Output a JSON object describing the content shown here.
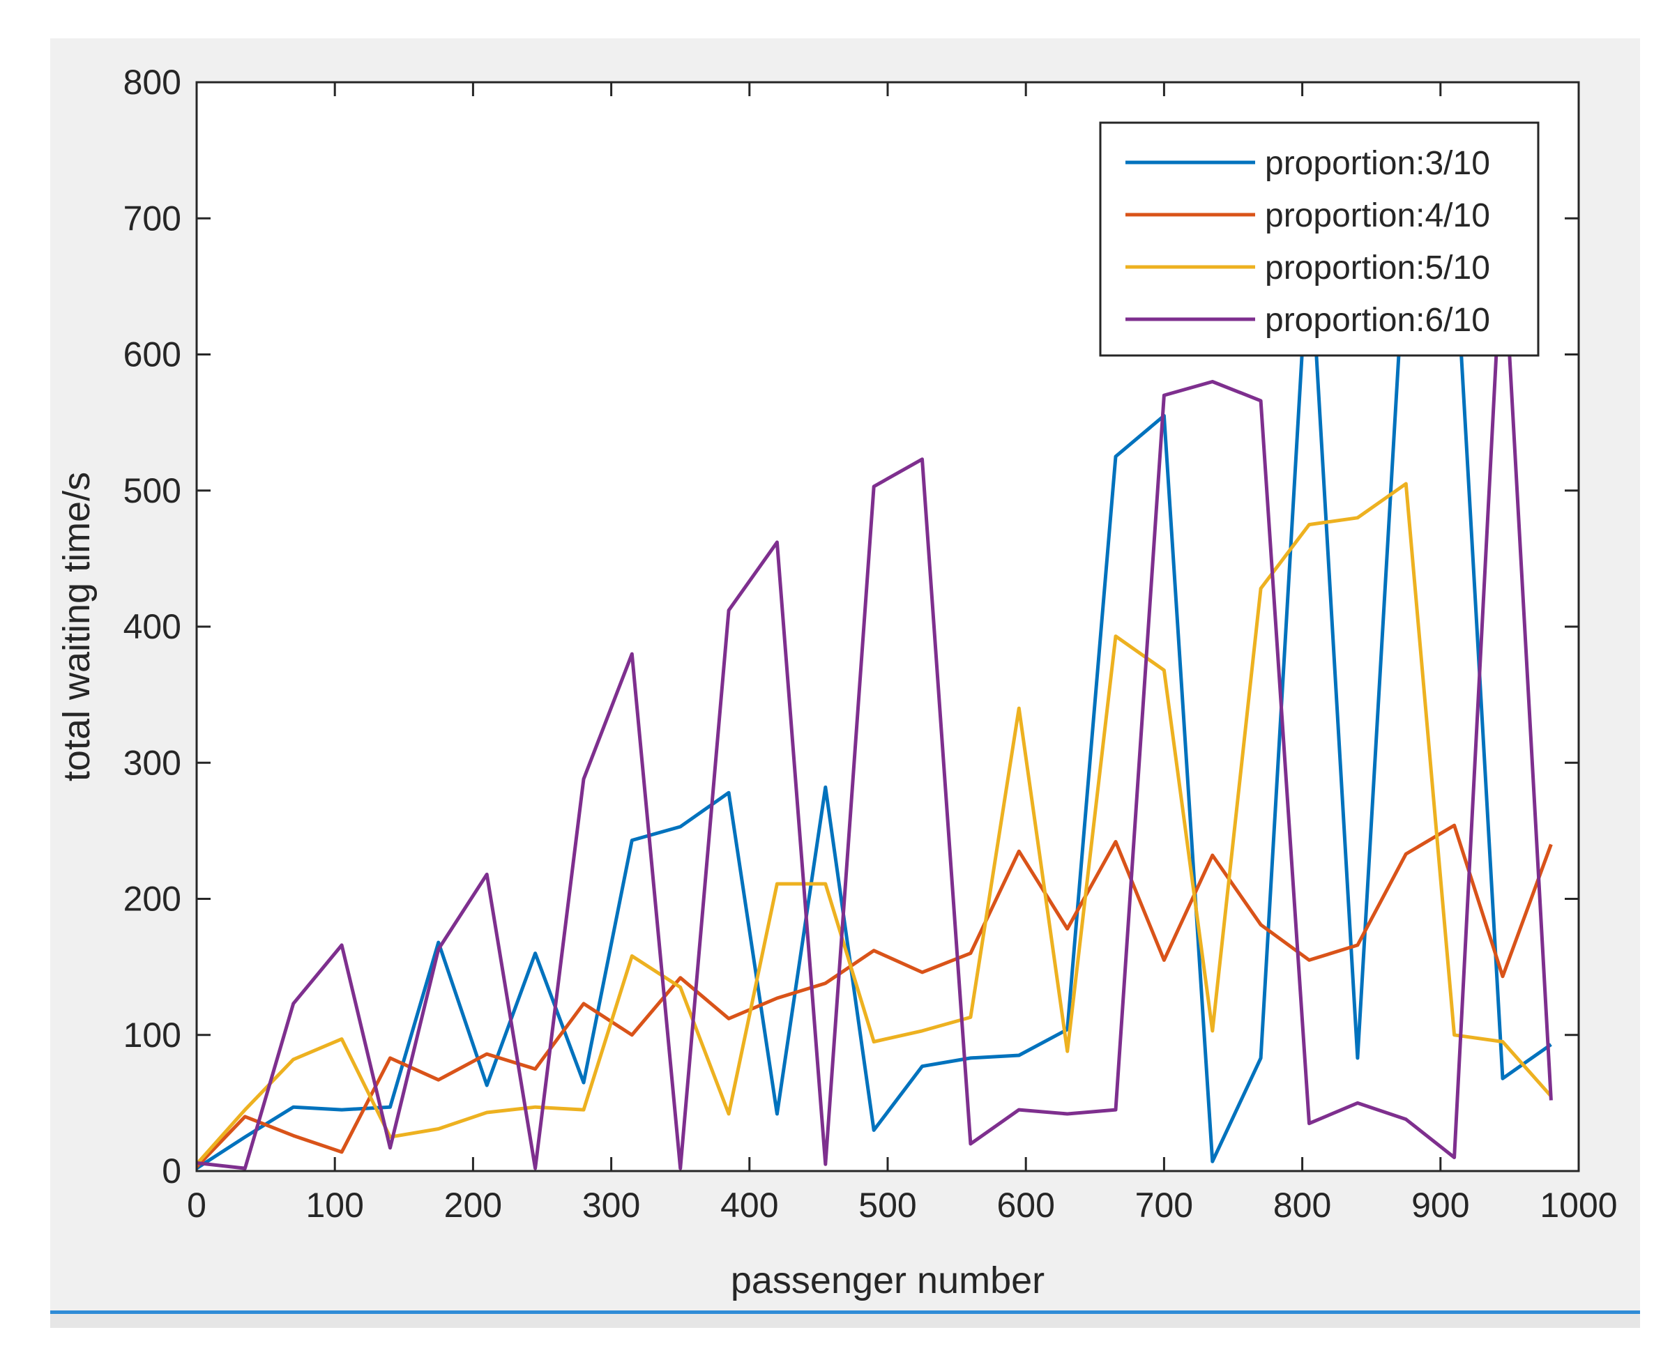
{
  "chart_data": {
    "type": "line",
    "title": "",
    "xlabel": "passenger number",
    "ylabel": "total waiting time/s",
    "xlim": [
      0,
      1000
    ],
    "ylim": [
      0,
      800
    ],
    "xticks": [
      0,
      100,
      200,
      300,
      400,
      500,
      600,
      700,
      800,
      900,
      1000
    ],
    "yticks": [
      0,
      100,
      200,
      300,
      400,
      500,
      600,
      700,
      800
    ],
    "grid": false,
    "legend_position": "top-right",
    "x": [
      0,
      35,
      70,
      105,
      140,
      175,
      210,
      245,
      280,
      315,
      350,
      385,
      420,
      455,
      490,
      525,
      560,
      595,
      630,
      665,
      700,
      735,
      770,
      805,
      840,
      875,
      910,
      945,
      980
    ],
    "series": [
      {
        "name": "proportion:3/10",
        "color": "#0072bd",
        "values": [
          2,
          25,
          47,
          45,
          47,
          168,
          63,
          160,
          65,
          243,
          253,
          278,
          42,
          282,
          30,
          77,
          83,
          85,
          104,
          525,
          555,
          7,
          83,
          690,
          83,
          690,
          690,
          68,
          93
        ]
      },
      {
        "name": "proportion:4/10",
        "color": "#d95319",
        "values": [
          3,
          40,
          26,
          14,
          83,
          67,
          86,
          75,
          123,
          100,
          142,
          112,
          127,
          138,
          162,
          146,
          160,
          235,
          178,
          242,
          155,
          232,
          181,
          155,
          166,
          233,
          254,
          143,
          240
        ]
      },
      {
        "name": "proportion:5/10",
        "color": "#edb120",
        "values": [
          5,
          45,
          82,
          97,
          25,
          31,
          43,
          47,
          45,
          158,
          135,
          42,
          211,
          211,
          95,
          103,
          113,
          340,
          88,
          393,
          368,
          103,
          428,
          475,
          480,
          505,
          100,
          95,
          55
        ]
      },
      {
        "name": "proportion:6/10",
        "color": "#7e2f8e",
        "values": [
          6,
          2,
          123,
          166,
          17,
          163,
          218,
          2,
          288,
          380,
          2,
          412,
          462,
          5,
          503,
          523,
          20,
          45,
          42,
          45,
          570,
          580,
          566,
          35,
          50,
          38,
          10,
          690,
          52
        ]
      }
    ]
  }
}
